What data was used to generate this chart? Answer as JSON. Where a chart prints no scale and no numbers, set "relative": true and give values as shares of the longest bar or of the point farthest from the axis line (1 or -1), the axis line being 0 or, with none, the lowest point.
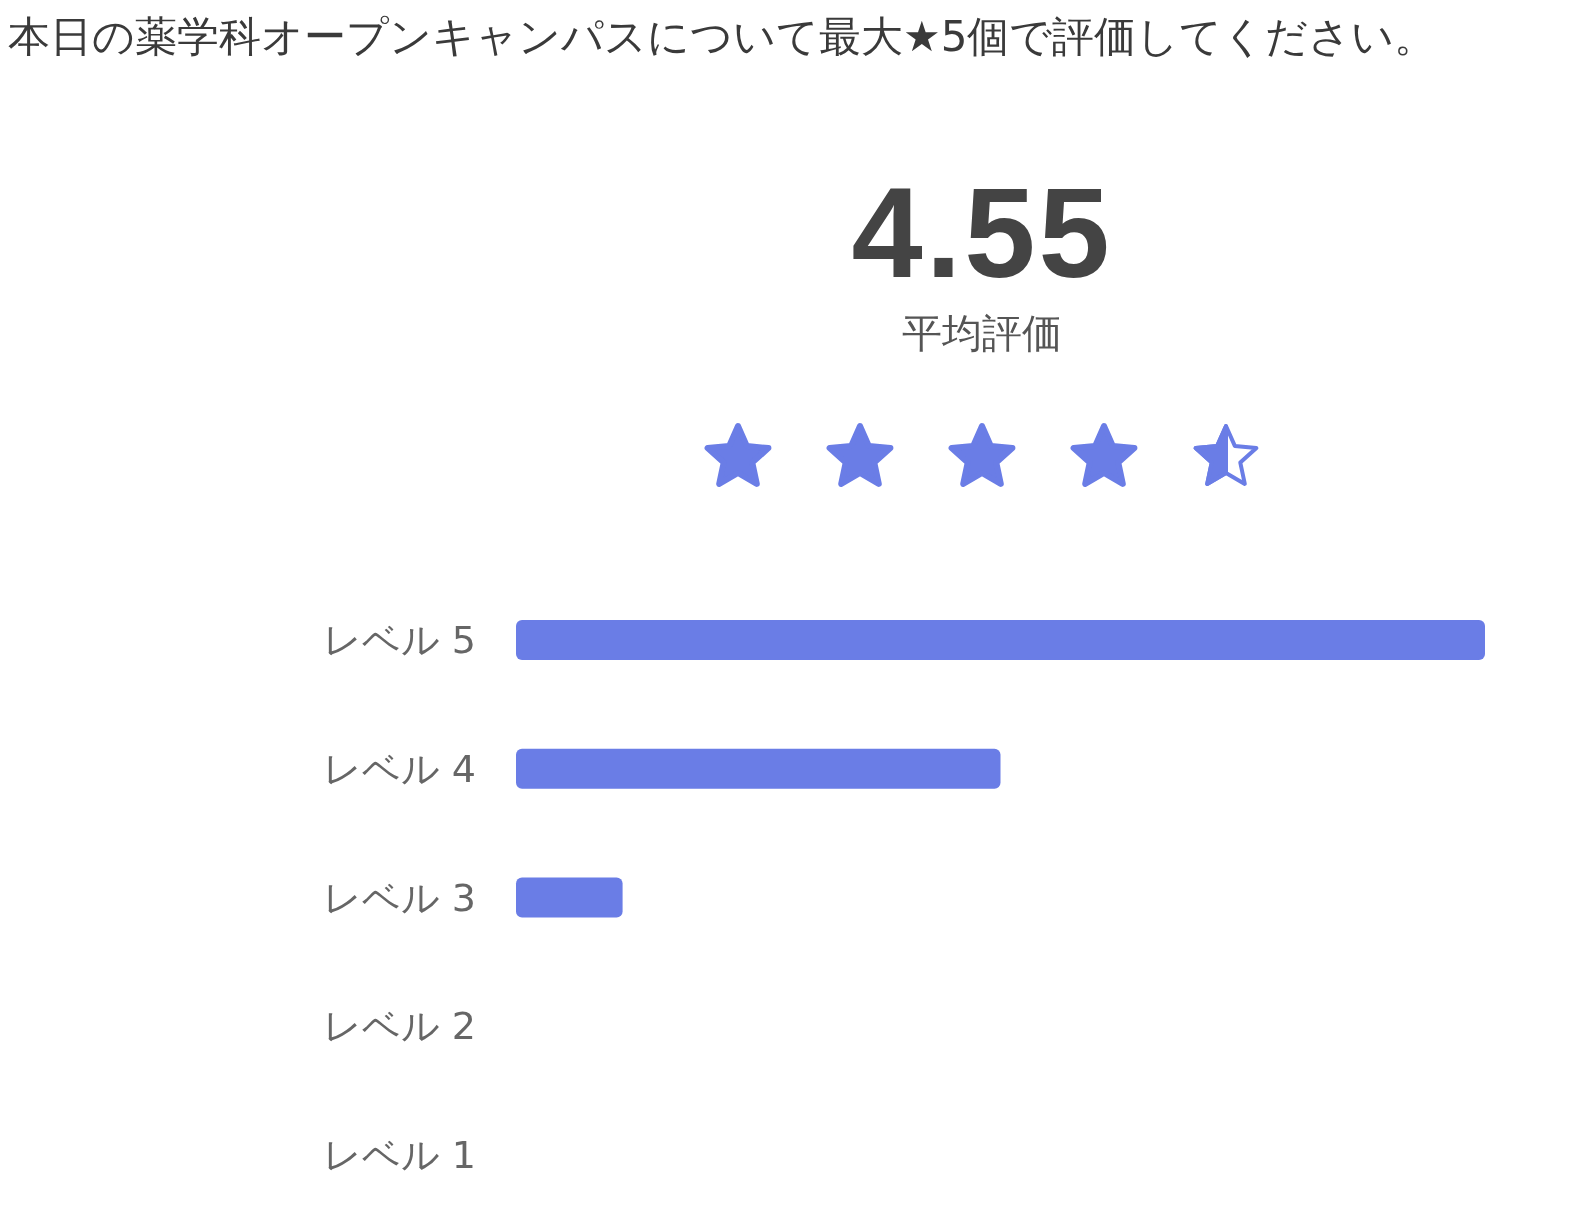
{
  "chart_data": {
    "type": "bar",
    "orientation": "horizontal",
    "relative": true,
    "title": "本日の薬学科オープンキャンパスについて最大★5個で評価してください。",
    "annotations": [
      "4.55",
      "平均評価"
    ],
    "categories": [
      "レベル 5",
      "レベル 4",
      "レベル 3",
      "レベル 2",
      "レベル 1"
    ],
    "values": [
      1,
      0.5,
      0.11,
      0,
      0
    ],
    "color": "#6a7de6"
  }
}
